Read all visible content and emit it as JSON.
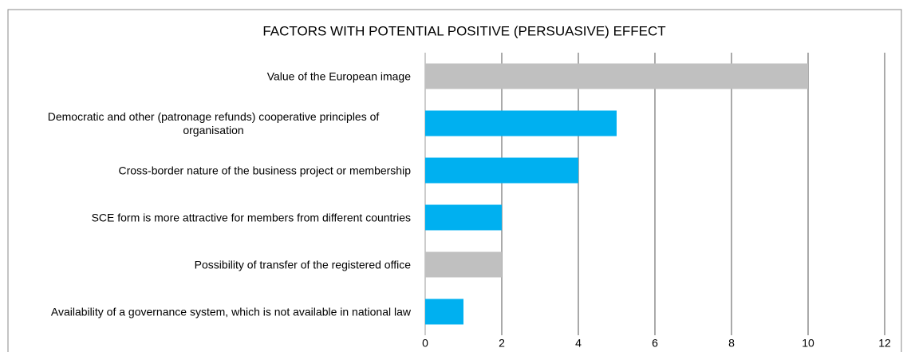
{
  "chart_data": {
    "type": "bar",
    "orientation": "horizontal",
    "title": "FACTORS WITH POTENTIAL POSITIVE (PERSUASIVE) EFFECT",
    "categories": [
      "Value of the European image",
      "Democratic and other (patronage refunds) cooperative principles of organisation",
      "Cross-border nature of the business project or membership",
      "SCE form is more attractive for members from different countries",
      "Possibility of transfer of the registered office",
      "Availability of a governance system, which is not available in national law"
    ],
    "values": [
      10,
      5,
      4,
      2,
      2,
      1
    ],
    "colors": [
      "#c0c0c0",
      "#00b0f0",
      "#00b0f0",
      "#00b0f0",
      "#c0c0c0",
      "#00b0f0"
    ],
    "xlim": [
      0,
      12
    ],
    "xticks": [
      0,
      2,
      4,
      6,
      8,
      10,
      12
    ],
    "grid": true
  }
}
